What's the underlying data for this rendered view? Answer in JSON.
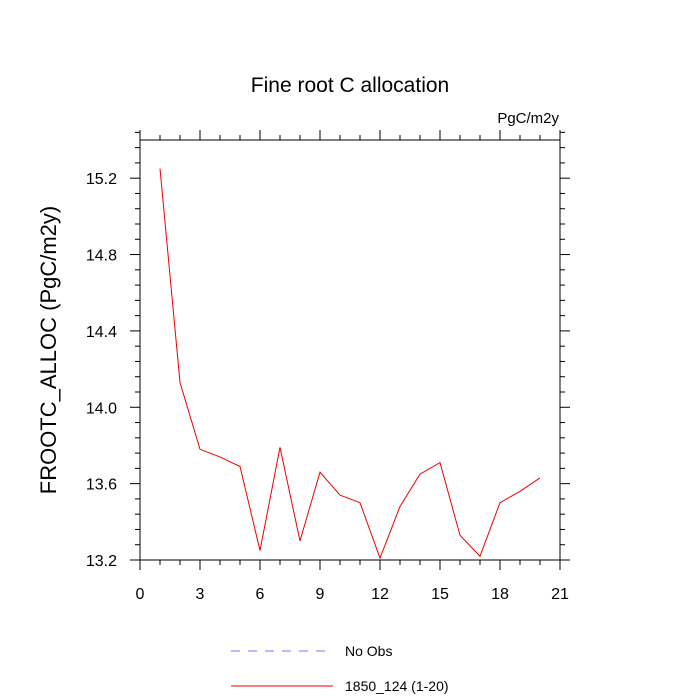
{
  "chart_data": {
    "type": "line",
    "title": "Fine root C allocation",
    "units_label": "PgC/m2y",
    "xlabel": "",
    "ylabel": "FROOTC_ALLOC  (PgC/m2y)",
    "xlim": [
      0,
      21
    ],
    "ylim": [
      13.2,
      15.4
    ],
    "xticks": [
      0,
      3,
      6,
      9,
      12,
      15,
      18,
      21
    ],
    "xtick_labels": [
      "0",
      "3",
      "6",
      "9",
      "12",
      "15",
      "18",
      "21"
    ],
    "yticks": [
      13.2,
      13.6,
      14.0,
      14.4,
      14.8,
      15.2
    ],
    "ytick_labels": [
      "13.2",
      "13.6",
      "14.0",
      "14.4",
      "14.8",
      "15.2"
    ],
    "grid": false,
    "legend_position": "bottom-center",
    "legend": [
      {
        "name": "No Obs",
        "color": "#7777ee",
        "dashed": true
      },
      {
        "name": "1850_124 (1-20)",
        "color": "#ee0000",
        "dashed": false
      }
    ],
    "series": [
      {
        "name": "1850_124 (1-20)",
        "color": "#ee0000",
        "x": [
          1,
          2,
          3,
          4,
          5,
          6,
          7,
          8,
          9,
          10,
          11,
          12,
          13,
          14,
          15,
          16,
          17,
          18,
          19,
          20
        ],
        "values": [
          15.25,
          14.13,
          13.78,
          13.74,
          13.69,
          13.25,
          13.79,
          13.3,
          13.66,
          13.54,
          13.5,
          13.21,
          13.48,
          13.65,
          13.71,
          13.33,
          13.22,
          13.5,
          13.56,
          13.63
        ]
      }
    ]
  }
}
